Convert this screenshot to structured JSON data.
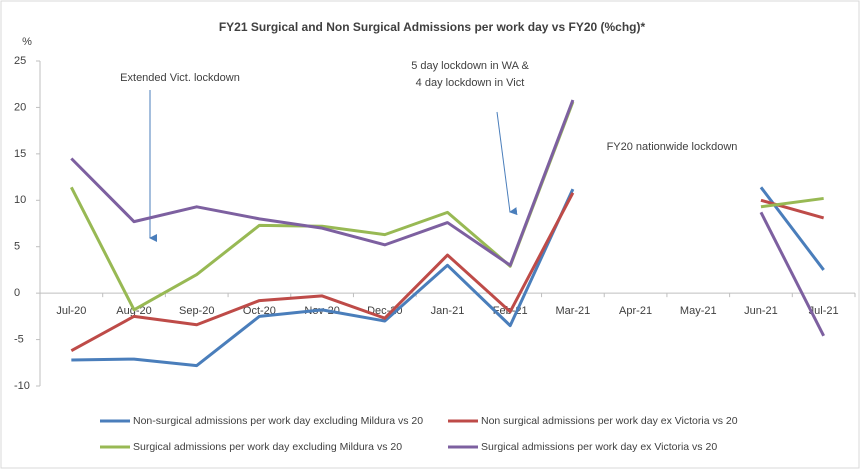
{
  "chart_data": {
    "type": "line",
    "title": "FY21 Surgical and Non Surgical Admissions per work day vs FY20 (%chg)*",
    "y_label": "%",
    "annotations": [
      [
        "Extended Vict. lockdown"
      ],
      [
        "5 day lockdown in WA &",
        "4 day lockdown in Vict"
      ],
      [
        "FY20 nationwide lockdown"
      ]
    ],
    "categories": [
      "Jul-20",
      "Aug-20",
      "Sep-20",
      "Oct-20",
      "Nov-20",
      "Dec-20",
      "Jan-21",
      "Feb-21",
      "Mar-21",
      "Apr-21",
      "May-21",
      "Jun-21",
      "Jul-21"
    ],
    "series": [
      {
        "name": "Non-surgical admissions per work day excluding Mildura vs 20",
        "color": "#4a7ebb",
        "values": [
          -7.2,
          -7.1,
          -7.8,
          -2.5,
          -1.8,
          -3.0,
          3.0,
          -3.5,
          11.2,
          null,
          null,
          11.4,
          2.5
        ]
      },
      {
        "name": "Non surgical admissions per work day ex Victoria vs 20",
        "color": "#be4b48",
        "values": [
          -6.2,
          -2.5,
          -3.4,
          -0.8,
          -0.3,
          -2.7,
          4.1,
          -2.0,
          10.8,
          null,
          null,
          10.0,
          8.1
        ]
      },
      {
        "name": "Surgical admissions per work day excluding Mildura vs 20",
        "color": "#98b954",
        "values": [
          11.4,
          -1.8,
          2.0,
          7.3,
          7.2,
          6.3,
          8.7,
          2.9,
          20.6,
          null,
          null,
          9.3,
          10.2
        ]
      },
      {
        "name": "Surgical admissions per work day ex Victoria vs 20",
        "color": "#7d60a0",
        "values": [
          14.5,
          7.7,
          9.3,
          8.0,
          7.0,
          5.2,
          7.6,
          3.0,
          20.8,
          null,
          null,
          8.7,
          -4.6
        ]
      }
    ],
    "ylim": [
      -10,
      25
    ],
    "yticks": [
      -10,
      -5,
      0,
      5,
      10,
      15,
      20,
      25
    ],
    "grid": false
  }
}
